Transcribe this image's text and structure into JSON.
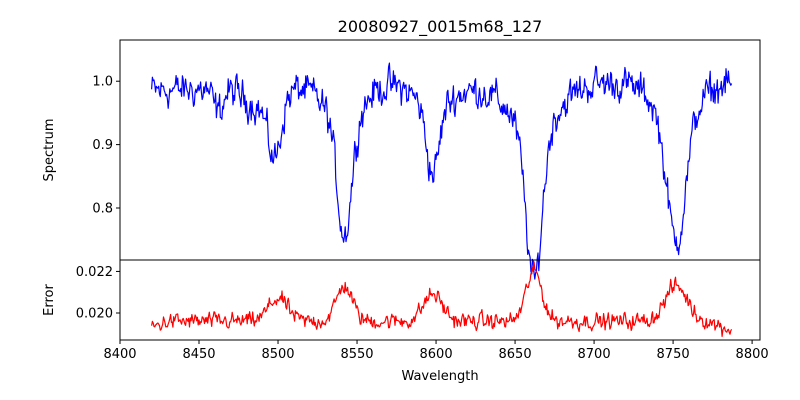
{
  "chart_data": {
    "title": "20080927_0015m68_127",
    "xlabel": "Wavelength",
    "xlim": [
      8400,
      8805
    ],
    "xticks": [
      8400,
      8450,
      8500,
      8550,
      8600,
      8650,
      8700,
      8750,
      8800
    ],
    "x_start": 8420,
    "x_end": 8787,
    "panels": [
      {
        "name": "spectrum",
        "type": "line",
        "ylabel": "Spectrum",
        "ylim": [
          0.718,
          1.065
        ],
        "yticks": [
          "0.8",
          "0.9",
          "1.0"
        ],
        "ytick_values": [
          0.8,
          0.9,
          1.0
        ],
        "color": "#0000ff",
        "continuum": [
          [
            8420,
            0.985
          ],
          [
            8500,
            0.99
          ],
          [
            8560,
            1.0
          ],
          [
            8620,
            0.99
          ],
          [
            8700,
            0.998
          ],
          [
            8787,
            0.998
          ]
        ],
        "features": [
          {
            "center": 8462,
            "depth": 0.035,
            "width": 3
          },
          {
            "center": 8498,
            "depth": 0.09,
            "width": 4
          },
          {
            "center": 8490,
            "depth": 0.03,
            "width": 10
          },
          {
            "center": 8542,
            "depth": 0.18,
            "width": 4.5
          },
          {
            "center": 8542,
            "depth": 0.06,
            "width": 12
          },
          {
            "center": 8598,
            "depth": 0.11,
            "width": 4
          },
          {
            "center": 8598,
            "depth": 0.03,
            "width": 12
          },
          {
            "center": 8662,
            "depth": 0.24,
            "width": 5
          },
          {
            "center": 8662,
            "depth": 0.07,
            "width": 15
          },
          {
            "center": 8752,
            "depth": 0.2,
            "width": 6
          },
          {
            "center": 8752,
            "depth": 0.05,
            "width": 14
          }
        ],
        "noise": 0.012
      },
      {
        "name": "error",
        "type": "line",
        "ylabel": "Error",
        "ylim": [
          0.0187,
          0.02255
        ],
        "yticks": [
          "0.020",
          "0.022"
        ],
        "ytick_values": [
          0.02,
          0.022
        ],
        "color": "#ff0000",
        "baseline": 0.0196,
        "features": [
          {
            "center": 8500,
            "height": 0.0011,
            "width": 6
          },
          {
            "center": 8542,
            "height": 0.0017,
            "width": 5
          },
          {
            "center": 8598,
            "height": 0.0013,
            "width": 6
          },
          {
            "center": 8662,
            "height": 0.0024,
            "width": 5
          },
          {
            "center": 8752,
            "height": 0.0017,
            "width": 7
          }
        ],
        "noise": 0.00018
      }
    ]
  }
}
